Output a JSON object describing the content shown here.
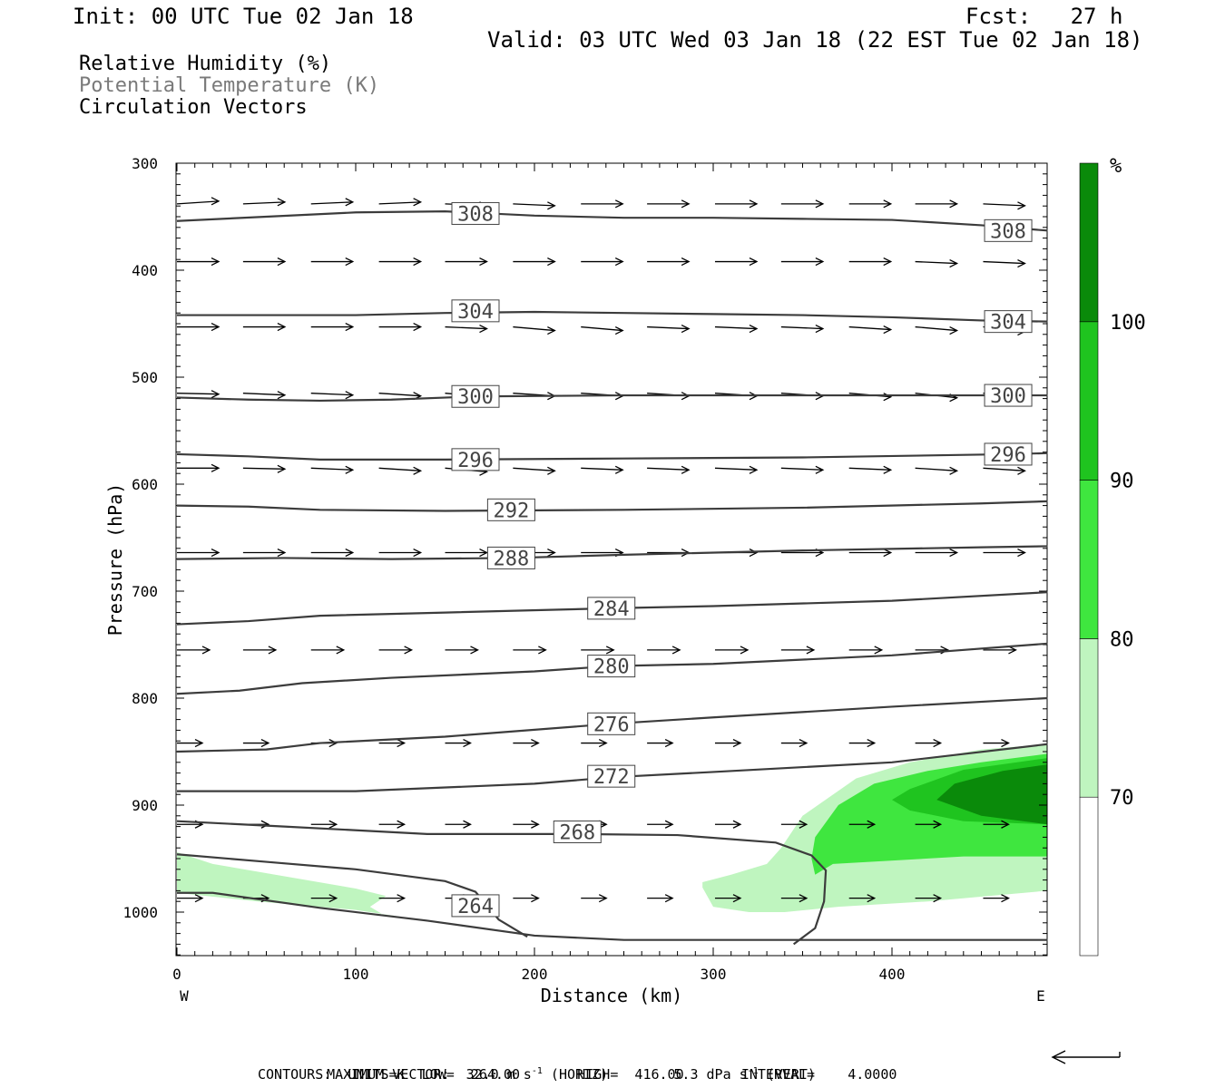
{
  "header": {
    "init": "Init: 00 UTC Tue 02 Jan 18",
    "fcst": "Fcst:   27 h",
    "valid": "Valid: 03 UTC Wed 03 Jan 18 (22 EST Tue 02 Jan 18)"
  },
  "legend": {
    "line1": "Relative Humidity (%)",
    "line2": "Potential Temperature (K)",
    "line3": "Circulation Vectors",
    "line2_color": "#7a7a7a"
  },
  "footer": {
    "max_vector_a": "MAXIMUM VECTOR:  32.0 m s",
    "max_vector_b": "(HORIZ)",
    "max_vector_c": "5.3 dPa s",
    "max_vector_d": "(VERT)",
    "superscript": "-1",
    "contours": "CONTOURS:  UNITS=K  LOW=  264.00       HIGH=  416.00       INTERVAL=    4.0000"
  },
  "colors": {
    "rh_70": "#bff5bf",
    "rh_80": "#3fe63f",
    "rh_90": "#1fc41f",
    "rh_100": "#0a8a0a",
    "contour": "#3c3c3c"
  },
  "chart_data": {
    "type": "cross-section",
    "xlabel": "Distance (km)",
    "ylabel": "Pressure (hPa)",
    "x_ticks": [
      0,
      100,
      200,
      300,
      400
    ],
    "y_ticks": [
      300,
      400,
      500,
      600,
      700,
      800,
      900,
      1000
    ],
    "x_end_labels": {
      "left": "W",
      "right": "E"
    },
    "xlim": [
      0,
      487
    ],
    "ylim": [
      300,
      1040
    ],
    "colorbar": {
      "unit": "%",
      "levels": [
        70,
        80,
        90,
        100
      ],
      "colors": [
        "#ffffff",
        "#bff5bf",
        "#3fe63f",
        "#1fc41f",
        "#0a8a0a"
      ]
    },
    "theta_contours": [
      {
        "value": 308,
        "label_positions": [
          [
            167,
            347
          ],
          [
            465,
            363
          ]
        ],
        "points": [
          [
            0,
            354
          ],
          [
            50,
            350
          ],
          [
            100,
            346
          ],
          [
            150,
            345
          ],
          [
            200,
            349
          ],
          [
            250,
            351
          ],
          [
            300,
            351
          ],
          [
            350,
            352
          ],
          [
            400,
            353
          ],
          [
            450,
            358
          ],
          [
            487,
            363
          ]
        ]
      },
      {
        "value": 304,
        "label_positions": [
          [
            167,
            438
          ],
          [
            465,
            448
          ]
        ],
        "points": [
          [
            0,
            442
          ],
          [
            50,
            442
          ],
          [
            100,
            442
          ],
          [
            150,
            440
          ],
          [
            200,
            439
          ],
          [
            250,
            440
          ],
          [
            300,
            441
          ],
          [
            350,
            442
          ],
          [
            400,
            444
          ],
          [
            450,
            447
          ],
          [
            487,
            448
          ]
        ]
      },
      {
        "value": 300,
        "label_positions": [
          [
            167,
            518
          ],
          [
            465,
            517
          ]
        ],
        "points": [
          [
            0,
            519
          ],
          [
            40,
            521
          ],
          [
            80,
            522
          ],
          [
            120,
            521
          ],
          [
            167,
            518
          ],
          [
            250,
            517
          ],
          [
            350,
            517
          ],
          [
            465,
            517
          ],
          [
            487,
            517
          ]
        ]
      },
      {
        "value": 296,
        "label_positions": [
          [
            167,
            577
          ],
          [
            465,
            572
          ]
        ],
        "points": [
          [
            0,
            572
          ],
          [
            40,
            574
          ],
          [
            80,
            577
          ],
          [
            150,
            577
          ],
          [
            250,
            576
          ],
          [
            350,
            575
          ],
          [
            465,
            572
          ],
          [
            487,
            571
          ]
        ]
      },
      {
        "value": 292,
        "label_positions": [
          [
            187,
            624
          ]
        ],
        "points": [
          [
            0,
            620
          ],
          [
            40,
            621
          ],
          [
            80,
            624
          ],
          [
            150,
            625
          ],
          [
            250,
            624
          ],
          [
            350,
            622
          ],
          [
            450,
            618
          ],
          [
            487,
            616
          ]
        ]
      },
      {
        "value": 288,
        "label_positions": [
          [
            187,
            669
          ]
        ],
        "points": [
          [
            0,
            670
          ],
          [
            60,
            669
          ],
          [
            120,
            670
          ],
          [
            187,
            669
          ],
          [
            250,
            666
          ],
          [
            350,
            662
          ],
          [
            450,
            659
          ],
          [
            487,
            658
          ]
        ]
      },
      {
        "value": 284,
        "label_positions": [
          [
            243,
            716
          ]
        ],
        "points": [
          [
            0,
            731
          ],
          [
            40,
            728
          ],
          [
            80,
            723
          ],
          [
            150,
            720
          ],
          [
            243,
            716
          ],
          [
            300,
            714
          ],
          [
            400,
            709
          ],
          [
            487,
            701
          ]
        ]
      },
      {
        "value": 280,
        "label_positions": [
          [
            243,
            770
          ]
        ],
        "points": [
          [
            0,
            796
          ],
          [
            35,
            793
          ],
          [
            70,
            786
          ],
          [
            120,
            781
          ],
          [
            200,
            775
          ],
          [
            243,
            770
          ],
          [
            300,
            768
          ],
          [
            400,
            760
          ],
          [
            487,
            749
          ]
        ]
      },
      {
        "value": 276,
        "label_positions": [
          [
            243,
            824
          ]
        ],
        "points": [
          [
            0,
            850
          ],
          [
            50,
            848
          ],
          [
            80,
            842
          ],
          [
            150,
            836
          ],
          [
            243,
            824
          ],
          [
            300,
            818
          ],
          [
            400,
            808
          ],
          [
            487,
            800
          ]
        ]
      },
      {
        "value": 272,
        "label_positions": [
          [
            243,
            873
          ]
        ],
        "points": [
          [
            0,
            887
          ],
          [
            50,
            887
          ],
          [
            100,
            887
          ],
          [
            200,
            880
          ],
          [
            243,
            874
          ],
          [
            300,
            869
          ],
          [
            400,
            860
          ],
          [
            487,
            843
          ]
        ]
      },
      {
        "value": 268,
        "label_positions": [
          [
            224,
            925
          ]
        ],
        "points": [
          [
            0,
            915
          ],
          [
            60,
            920
          ],
          [
            140,
            927
          ],
          [
            224,
            927
          ],
          [
            280,
            928
          ],
          [
            335,
            935
          ],
          [
            355,
            947
          ],
          [
            363,
            961
          ],
          [
            362,
            990
          ],
          [
            357,
            1015
          ],
          [
            345,
            1030
          ]
        ]
      },
      {
        "value": 264,
        "label_positions": [
          [
            167,
            994
          ]
        ],
        "points": [
          [
            0,
            946
          ],
          [
            50,
            953
          ],
          [
            100,
            960
          ],
          [
            150,
            971
          ],
          [
            167,
            981
          ],
          [
            180,
            1007
          ],
          [
            196,
            1023
          ]
        ]
      },
      {
        "value": null,
        "points": [
          [
            0,
            982
          ],
          [
            20,
            982
          ],
          [
            80,
            996
          ],
          [
            140,
            1008
          ],
          [
            200,
            1022
          ],
          [
            250,
            1026
          ],
          [
            350,
            1026
          ],
          [
            487,
            1026
          ]
        ]
      }
    ],
    "rh_regions": [
      {
        "level": 70,
        "points": [
          [
            0,
            944
          ],
          [
            0,
            982
          ],
          [
            45,
            990
          ],
          [
            100,
            998
          ],
          [
            140,
            1008
          ],
          [
            115,
            1002
          ],
          [
            108,
            995
          ],
          [
            117,
            985
          ],
          [
            100,
            978
          ],
          [
            55,
            965
          ],
          [
            20,
            955
          ]
        ]
      },
      {
        "level": 70,
        "points": [
          [
            294,
            977
          ],
          [
            300,
            995
          ],
          [
            320,
            1000
          ],
          [
            340,
            1000
          ],
          [
            370,
            995
          ],
          [
            420,
            990
          ],
          [
            487,
            980
          ],
          [
            487,
            843
          ],
          [
            450,
            848
          ],
          [
            410,
            860
          ],
          [
            380,
            875
          ],
          [
            350,
            910
          ],
          [
            338,
            940
          ],
          [
            330,
            955
          ],
          [
            310,
            965
          ],
          [
            294,
            972
          ]
        ]
      },
      {
        "level": 80,
        "points": [
          [
            357,
            965
          ],
          [
            367,
            955
          ],
          [
            440,
            948
          ],
          [
            487,
            948
          ],
          [
            487,
            852
          ],
          [
            450,
            860
          ],
          [
            420,
            868
          ],
          [
            390,
            880
          ],
          [
            370,
            900
          ],
          [
            357,
            930
          ],
          [
            355,
            950
          ]
        ]
      },
      {
        "level": 90,
        "points": [
          [
            410,
            905
          ],
          [
            440,
            915
          ],
          [
            487,
            918
          ],
          [
            487,
            856
          ],
          [
            440,
            867
          ],
          [
            410,
            885
          ],
          [
            400,
            895
          ]
        ]
      },
      {
        "level": 100,
        "points": [
          [
            450,
            910
          ],
          [
            487,
            918
          ],
          [
            487,
            862
          ],
          [
            462,
            868
          ],
          [
            435,
            880
          ],
          [
            425,
            895
          ]
        ]
      }
    ],
    "vector_rows": [
      {
        "p": 338,
        "xs": [
          0,
          37,
          75,
          113,
          150,
          188,
          226,
          263,
          301,
          338,
          376,
          413,
          451
        ],
        "dy": [
          -3,
          -2,
          -2,
          -2,
          2,
          2,
          0,
          0,
          0,
          0,
          0,
          0,
          2
        ]
      },
      {
        "p": 392,
        "xs": [
          0,
          37,
          75,
          113,
          150,
          188,
          226,
          263,
          301,
          338,
          376,
          413,
          451
        ],
        "dy": [
          0,
          0,
          0,
          0,
          0,
          0,
          0,
          0,
          0,
          0,
          0,
          2,
          2
        ]
      },
      {
        "p": 453,
        "xs": [
          0,
          37,
          75,
          113,
          150,
          188,
          226,
          263,
          301,
          338,
          376,
          413,
          451
        ],
        "dy": [
          0,
          0,
          0,
          0,
          2,
          4,
          4,
          2,
          2,
          2,
          3,
          4,
          5
        ]
      },
      {
        "p": 515,
        "xs": [
          0,
          37,
          75,
          113,
          150,
          188,
          226,
          263,
          301,
          338,
          376,
          413,
          451
        ],
        "dy": [
          1,
          2,
          2,
          3,
          4,
          3,
          3,
          3,
          3,
          3,
          4,
          5,
          5
        ]
      },
      {
        "p": 585,
        "xs": [
          0,
          37,
          75,
          113,
          150,
          188,
          226,
          263,
          301,
          338,
          376,
          413,
          451
        ],
        "dy": [
          0,
          1,
          2,
          3,
          4,
          3,
          2,
          2,
          2,
          2,
          2,
          3,
          3
        ]
      },
      {
        "p": 664,
        "xs": [
          0,
          37,
          75,
          113,
          150,
          188,
          226,
          263,
          301,
          338,
          376,
          413,
          451
        ],
        "dy": [
          0,
          0,
          0,
          0,
          0,
          0,
          0,
          0,
          0,
          0,
          0,
          0,
          0
        ]
      },
      {
        "p": 755,
        "xs": [
          0,
          37,
          75,
          113,
          150,
          188,
          226,
          263,
          301,
          338,
          376,
          413,
          451
        ],
        "dy": [
          0,
          0,
          0,
          0,
          0,
          0,
          0,
          0,
          0,
          0,
          0,
          0,
          0
        ]
      },
      {
        "p": 842,
        "xs": [
          0,
          37,
          75,
          113,
          150,
          188,
          226,
          263,
          301,
          338,
          376,
          413,
          451
        ],
        "dy": [
          0,
          0,
          0,
          0,
          0,
          0,
          0,
          0,
          0,
          0,
          0,
          0,
          0
        ]
      },
      {
        "p": 918,
        "xs": [
          0,
          37,
          75,
          113,
          150,
          188,
          226,
          263,
          301,
          338,
          376,
          413,
          451
        ],
        "dy": [
          0,
          0,
          0,
          0,
          0,
          0,
          0,
          0,
          0,
          0,
          0,
          0,
          0
        ]
      },
      {
        "p": 987,
        "xs": [
          0,
          37,
          75,
          113,
          150,
          188,
          226,
          263,
          301,
          338,
          376,
          413,
          451
        ],
        "dy": [
          0,
          0,
          0,
          0,
          0,
          0,
          0,
          0,
          0,
          0,
          0,
          0,
          0
        ]
      }
    ]
  }
}
